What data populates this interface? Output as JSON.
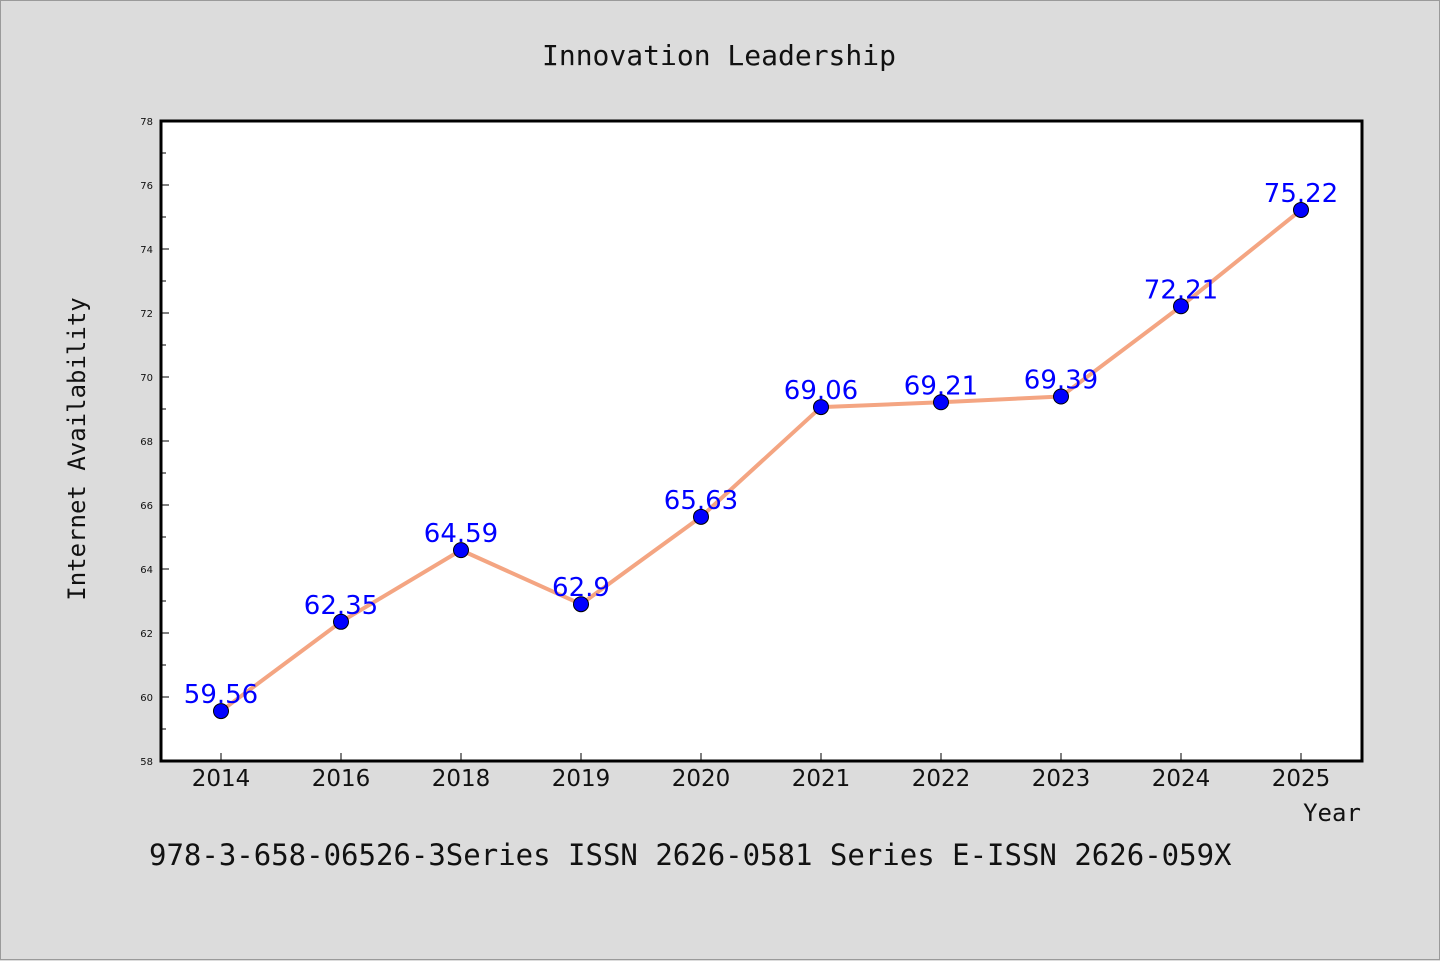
{
  "chart_data": {
    "type": "line",
    "title": "Innovation Leadership",
    "xlabel": "Year",
    "ylabel": "Internet Availability",
    "categories": [
      "2014",
      "2016",
      "2018",
      "2019",
      "2020",
      "2021",
      "2022",
      "2023",
      "2024",
      "2025"
    ],
    "series": [
      {
        "values": [
          59.56,
          62.35,
          64.59,
          62.9,
          65.63,
          69.06,
          69.21,
          69.39,
          72.21,
          75.22
        ],
        "line_color": "#f4a582",
        "marker_color": "#0000ff"
      }
    ],
    "data_labels": [
      "59.56",
      "62.35",
      "64.59",
      "62.9",
      "65.63",
      "69.06",
      "69.21",
      "69.39",
      "72.21",
      "75.22"
    ],
    "ylim": [
      58,
      78
    ],
    "yticks": [
      58,
      60,
      62,
      64,
      66,
      68,
      70,
      72,
      74,
      76,
      78
    ],
    "grid": false,
    "label_color": "#0000ff",
    "background": "#dcdcdc",
    "plot_background": "#ffffff"
  },
  "footer": "978-3-658-06526-3Series ISSN 2626-0581 Series E-ISSN 2626-059X"
}
